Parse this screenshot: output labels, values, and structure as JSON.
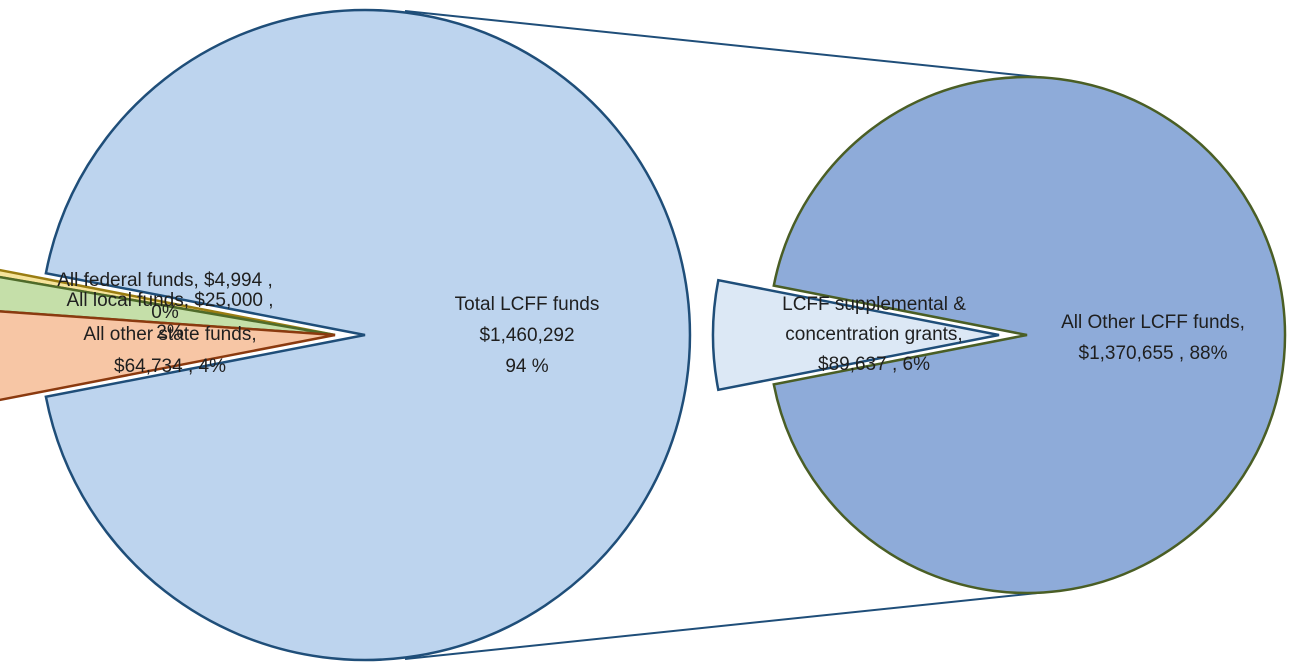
{
  "chart_data": {
    "type": "bar-of-pie",
    "primary_pie": {
      "slices": [
        {
          "name": "Total LCFF funds",
          "value": 1460292,
          "percent": 94,
          "label_lines": [
            "Total LCFF funds",
            "$1,460,292",
            "94 %"
          ],
          "color": "#bdd4ee",
          "stroke": "#1f4e79"
        },
        {
          "name": "All other state funds",
          "value": 64734,
          "percent": 4,
          "label_lines": [
            "All other state funds,",
            "$64,734 , 4%"
          ],
          "color": "#f7c6a5",
          "stroke": "#8b3a0f"
        },
        {
          "name": "All local funds",
          "value": 25000,
          "percent": 2,
          "label_lines": [
            "All local funds, $25,000 ,",
            "2%"
          ],
          "color": "#c5dfa9",
          "stroke": "#4f6b2a"
        },
        {
          "name": "All federal funds",
          "value": 4994,
          "percent": 0,
          "label_lines": [
            "All federal funds, $4,994 ,",
            "0%"
          ],
          "color": "#f6e49c",
          "stroke": "#9a7d12"
        }
      ]
    },
    "secondary_pie": {
      "slices": [
        {
          "name": "All Other LCFF funds",
          "value": 1370655,
          "percent": 88,
          "label_lines": [
            "All Other LCFF funds,",
            "$1,370,655 , 88%"
          ],
          "color": "#8eabd9",
          "stroke": "#4a5e25"
        },
        {
          "name": "LCFF supplemental & concentration grants",
          "value": 89637,
          "percent": 6,
          "label_lines": [
            "LCFF supplemental &",
            "concentration grants,",
            "$89,637 , 6%"
          ],
          "color": "#dce8f5",
          "stroke": "#1f4e79"
        }
      ]
    },
    "connector_color": "#1f4e79",
    "legend": "none",
    "grid": false
  }
}
